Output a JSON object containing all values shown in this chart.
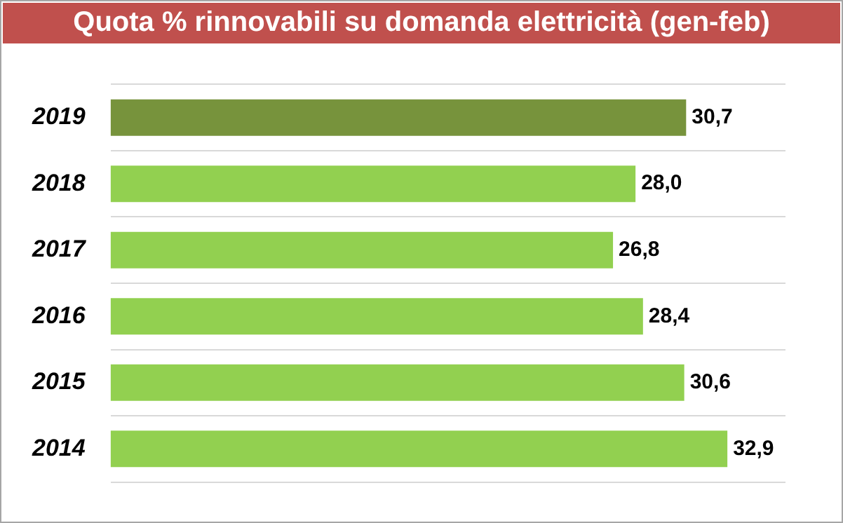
{
  "chart_data": {
    "type": "bar",
    "orientation": "horizontal",
    "title": "Quota % rinnovabili su domanda elettricità (gen-feb)",
    "categories": [
      "2019",
      "2018",
      "2017",
      "2016",
      "2015",
      "2014"
    ],
    "values": [
      30.7,
      28.0,
      26.8,
      28.4,
      30.6,
      32.9
    ],
    "colors": [
      "#77933c",
      "#92d050",
      "#92d050",
      "#92d050",
      "#92d050",
      "#92d050"
    ],
    "value_labels": [
      "30,7",
      "28,0",
      "26,8",
      "28,4",
      "30,6",
      "32,9"
    ],
    "xlim": [
      0,
      36
    ],
    "grid": "y",
    "legend": false,
    "tick_labels": "y"
  }
}
